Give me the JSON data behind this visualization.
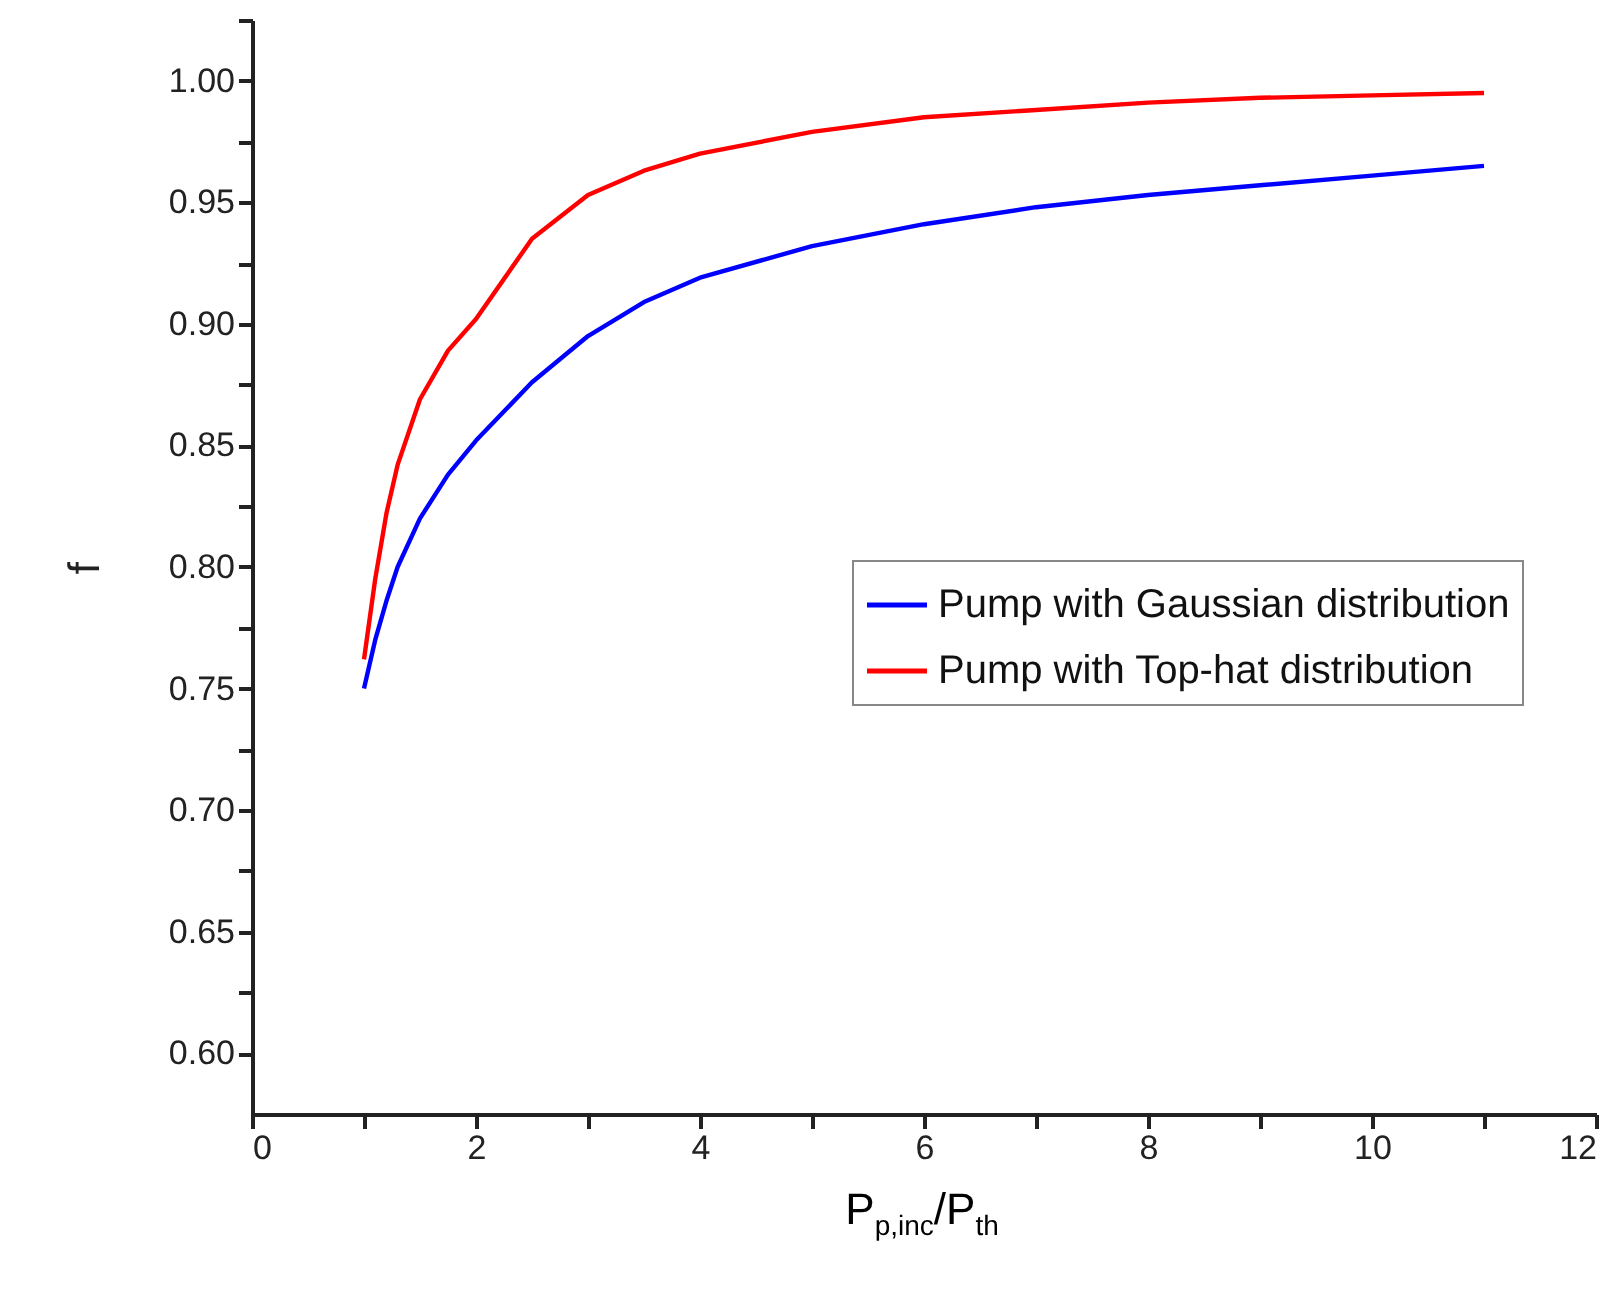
{
  "chart_data": {
    "type": "line",
    "xlabel": "P$_{p,inc}$/P$_{th}$",
    "ylabel": "f",
    "xlim": [
      0,
      12
    ],
    "xticks": [
      0,
      {
        "value": 1,
        "label": null
      },
      2,
      {
        "value": 3,
        "label": null
      },
      4,
      {
        "value": 5,
        "label": null
      },
      6,
      {
        "value": 7,
        "label": null
      },
      8,
      {
        "value": 9,
        "label": null
      },
      10,
      {
        "value": 11,
        "label": null
      },
      12
    ],
    "ylim": [
      0.575,
      1.025
    ],
    "yticks": [
      {
        "value": 0.6,
        "label": "0.60"
      },
      {
        "value": 0.625,
        "label": null
      },
      {
        "value": 0.65,
        "label": "0.65"
      },
      {
        "value": 0.675,
        "label": null
      },
      {
        "value": 0.7,
        "label": "0.70"
      },
      {
        "value": 0.725,
        "label": null
      },
      {
        "value": 0.75,
        "label": "0.75"
      },
      {
        "value": 0.775,
        "label": null
      },
      {
        "value": 0.8,
        "label": "0.80"
      },
      {
        "value": 0.825,
        "label": null
      },
      {
        "value": 0.85,
        "label": "0.85"
      },
      {
        "value": 0.875,
        "label": null
      },
      {
        "value": 0.9,
        "label": "0.90"
      },
      {
        "value": 0.925,
        "label": null
      },
      {
        "value": 0.95,
        "label": "0.95"
      },
      {
        "value": 0.975,
        "label": null
      },
      {
        "value": 1.0,
        "label": "1.00"
      },
      {
        "value": 1.025,
        "label": null
      }
    ],
    "x": [
      1,
      1.1,
      1.2,
      1.3,
      1.5,
      1.75,
      2,
      2.5,
      3,
      3.5,
      4,
      5,
      6,
      7,
      8,
      9,
      10,
      11
    ],
    "series": [
      {
        "name": "Pump with Gaussian distribution",
        "color": "#0000ff",
        "values": [
          0.75,
          0.77,
          0.786,
          0.8,
          0.82,
          0.838,
          0.852,
          0.876,
          0.895,
          0.909,
          0.919,
          0.932,
          0.941,
          0.948,
          0.953,
          0.957,
          0.961,
          0.965
        ]
      },
      {
        "name": "Pump with Top-hat distribution",
        "color": "#ff0000",
        "values": [
          0.762,
          0.795,
          0.822,
          0.842,
          0.869,
          0.889,
          0.902,
          0.935,
          0.953,
          0.963,
          0.97,
          0.979,
          0.985,
          0.988,
          0.991,
          0.993,
          0.994,
          0.995
        ]
      }
    ],
    "legend": "center right",
    "grid": false,
    "marker": "none",
    "line_style": "solid"
  }
}
